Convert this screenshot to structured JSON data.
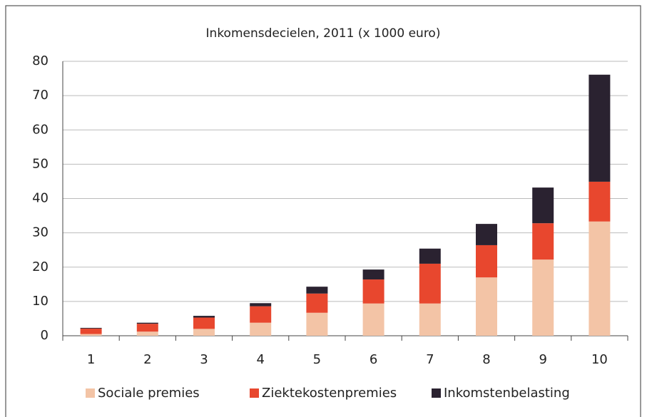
{
  "chart_data": {
    "type": "stacked_bar",
    "title": "Inkomensdecielen, 2011 (x 1000 euro)",
    "categories": [
      "1",
      "2",
      "3",
      "4",
      "5",
      "6",
      "7",
      "8",
      "9",
      "10"
    ],
    "series": [
      {
        "name": "Sociale premies",
        "color": "#f3c4a6",
        "values": [
          0.5,
          1.2,
          2.0,
          3.8,
          6.7,
          9.4,
          9.4,
          17.0,
          22.2,
          33.3
        ]
      },
      {
        "name": "Ziektekostenpremies",
        "color": "#e8472e",
        "values": [
          1.6,
          2.3,
          3.3,
          4.8,
          5.6,
          7.0,
          11.6,
          9.4,
          10.6,
          11.6
        ]
      },
      {
        "name": "Inkomstenbelasting",
        "color": "#2a2230",
        "values": [
          0.2,
          0.3,
          0.5,
          0.9,
          2.0,
          2.9,
          4.4,
          6.2,
          10.4,
          31.2
        ]
      }
    ],
    "ylim": [
      0,
      80
    ],
    "yticks": [
      0,
      10,
      20,
      30,
      40,
      50,
      60,
      70,
      80
    ],
    "grid": true,
    "legend": "bottom"
  }
}
